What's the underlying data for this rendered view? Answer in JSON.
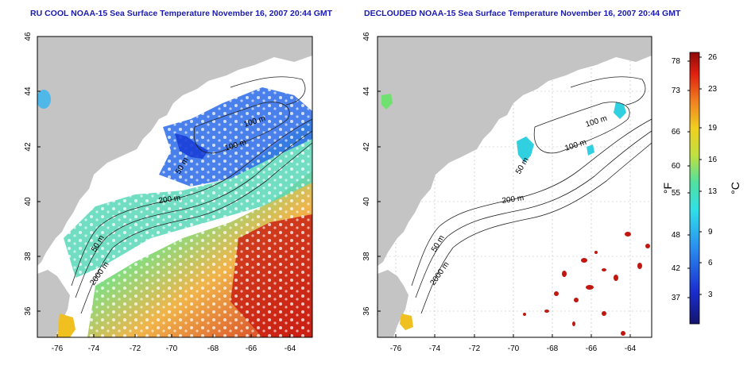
{
  "left_map": {
    "title": "RU COOL NOAA-15 Sea Surface Temperature November 16, 2007 20:44 GMT",
    "y_ticks": [
      "46",
      "44",
      "42",
      "40",
      "38",
      "36"
    ],
    "x_ticks": [
      "-76",
      "-74",
      "-72",
      "-70",
      "-68",
      "-66",
      "-64"
    ],
    "contour_labels": [
      "100 m",
      "100 m",
      "50 m",
      "200 m",
      "50 m",
      "2000 m"
    ]
  },
  "right_map": {
    "title": "DECLOUDED NOAA-15 Sea Surface Temperature November 16, 2007 20:44 GMT",
    "y_ticks": [
      "46",
      "44",
      "42",
      "40",
      "38",
      "36"
    ],
    "x_ticks": [
      "-76",
      "-74",
      "-72",
      "-70",
      "-68",
      "-66",
      "-64"
    ],
    "contour_labels": [
      "100 m",
      "100 m",
      "50 m",
      "200 m",
      "50 m",
      "2000 m"
    ]
  },
  "colorbar": {
    "fahrenheit_label": "°F",
    "celsius_label": "°C",
    "fahrenheit_ticks": [
      "78",
      "73",
      "66",
      "60",
      "55",
      "48",
      "42",
      "37"
    ],
    "celsius_ticks": [
      "26",
      "23",
      "19",
      "16",
      "13",
      "9",
      "6",
      "3"
    ]
  },
  "colors": {
    "land": "#c4c4c4",
    "title": "#1a1ab0",
    "cold": "#1a2ed0",
    "warm": "#c01010"
  }
}
